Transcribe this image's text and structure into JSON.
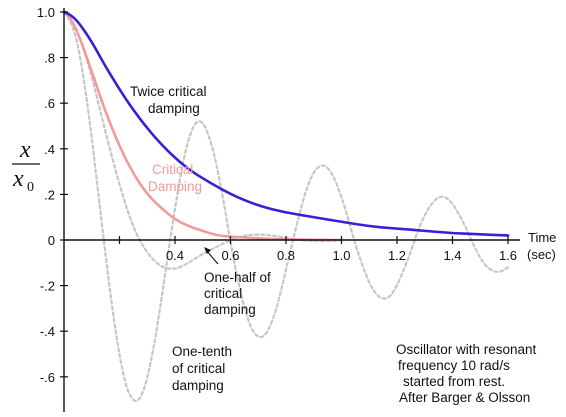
{
  "chart_data": {
    "type": "line",
    "xlabel": "Time",
    "xunit": "(sec)",
    "ylabel": {
      "symbol": "x",
      "denominator": "x",
      "subscript": "0"
    },
    "xlim": [
      0,
      1.6
    ],
    "ylim": [
      -0.7,
      1.0
    ],
    "grid": false,
    "x_ticks": [
      0.2,
      0.4,
      0.6,
      0.8,
      1.0,
      1.2,
      1.4,
      1.6
    ],
    "x_tick_labels": [
      "",
      "0.4",
      "0.6",
      "0.8",
      "1.0",
      "1.2",
      "1.4",
      "1.6"
    ],
    "y_ticks": [
      1.0,
      0.8,
      0.6,
      0.4,
      0.2,
      0,
      -0.2,
      -0.4,
      -0.6
    ],
    "y_tick_labels": [
      "1.0",
      ".8",
      ".6",
      ".4",
      ".2",
      "0",
      "-.2",
      "-.4",
      "-.6"
    ],
    "series": [
      {
        "color": "#3a1fd6",
        "style": "solid",
        "x": [
          0,
          0.02,
          0.05,
          0.1,
          0.15,
          0.2,
          0.25,
          0.3,
          0.35,
          0.4,
          0.45,
          0.5,
          0.6,
          0.7,
          0.8,
          0.9,
          1.0,
          1.1,
          1.2,
          1.3,
          1.4,
          1.5,
          1.6
        ],
        "values": [
          1.0,
          0.99,
          0.96,
          0.87,
          0.76,
          0.66,
          0.57,
          0.49,
          0.42,
          0.36,
          0.31,
          0.27,
          0.2,
          0.15,
          0.12,
          0.1,
          0.08,
          0.06,
          0.05,
          0.04,
          0.03,
          0.025,
          0.02
        ]
      },
      {
        "color": "#f19a9a",
        "style": "solid",
        "x": [
          0,
          0.02,
          0.05,
          0.1,
          0.15,
          0.2,
          0.25,
          0.3,
          0.35,
          0.4,
          0.45,
          0.5,
          0.55,
          0.6,
          0.7,
          0.8,
          0.9,
          1.0
        ],
        "values": [
          1.0,
          0.98,
          0.91,
          0.74,
          0.56,
          0.41,
          0.29,
          0.2,
          0.14,
          0.09,
          0.06,
          0.04,
          0.02,
          0.015,
          0.007,
          0.003,
          0.001,
          0.0
        ]
      },
      {
        "color": "#c6c6c6",
        "style": "dotted",
        "x": [
          0,
          0.05,
          0.1,
          0.15,
          0.2,
          0.25,
          0.3,
          0.35,
          0.4,
          0.45,
          0.5,
          0.55,
          0.6,
          0.65,
          0.7,
          0.75,
          0.8,
          0.85,
          0.9,
          0.95,
          1.0
        ],
        "values": [
          1.0,
          0.92,
          0.72,
          0.47,
          0.24,
          0.05,
          -0.06,
          -0.12,
          -0.13,
          -0.1,
          -0.06,
          -0.03,
          0.0,
          0.02,
          0.025,
          0.02,
          0.01,
          0.0,
          -0.005,
          -0.005,
          0.0
        ]
      },
      {
        "color": "#c6c6c6",
        "style": "dotted",
        "x": [
          0,
          0.025,
          0.05,
          0.075,
          0.1,
          0.125,
          0.15,
          0.175,
          0.2,
          0.225,
          0.25,
          0.275,
          0.3,
          0.325,
          0.35,
          0.375,
          0.4,
          0.425,
          0.45,
          0.475,
          0.5,
          0.525,
          0.55,
          0.575,
          0.6,
          0.625,
          0.65,
          0.675,
          0.7,
          0.725,
          0.75,
          0.775,
          0.8,
          0.825,
          0.85,
          0.875,
          0.9,
          0.925,
          0.95,
          0.975,
          1.0,
          1.025,
          1.05,
          1.075,
          1.1,
          1.125,
          1.15,
          1.175,
          1.2,
          1.225,
          1.25,
          1.275,
          1.3,
          1.325,
          1.35,
          1.375,
          1.4,
          1.425,
          1.45,
          1.475,
          1.5,
          1.525,
          1.55,
          1.575,
          1.6
        ],
        "values": [
          1.0,
          0.96,
          0.86,
          0.68,
          0.45,
          0.19,
          -0.07,
          -0.31,
          -0.51,
          -0.65,
          -0.71,
          -0.7,
          -0.61,
          -0.46,
          -0.27,
          -0.06,
          0.14,
          0.32,
          0.45,
          0.52,
          0.52,
          0.45,
          0.33,
          0.17,
          -0.01,
          -0.17,
          -0.3,
          -0.39,
          -0.43,
          -0.42,
          -0.36,
          -0.26,
          -0.13,
          0.0,
          0.12,
          0.23,
          0.3,
          0.33,
          0.32,
          0.27,
          0.19,
          0.09,
          -0.02,
          -0.11,
          -0.19,
          -0.24,
          -0.26,
          -0.25,
          -0.2,
          -0.13,
          -0.05,
          0.04,
          0.11,
          0.16,
          0.19,
          0.19,
          0.16,
          0.11,
          0.05,
          -0.02,
          -0.08,
          -0.12,
          -0.14,
          -0.14,
          -0.12
        ]
      }
    ],
    "annotations": [
      {
        "lines": [
          "Twice critical",
          "damping"
        ],
        "color": "#111111"
      },
      {
        "lines": [
          "Critical",
          "Damping"
        ],
        "color": "#f19a9a"
      },
      {
        "lines": [
          "One-half of",
          "critical",
          "damping"
        ],
        "color": "#111111"
      },
      {
        "lines": [
          "One-tenth",
          "of critical",
          "damping"
        ],
        "color": "#111111"
      },
      {
        "lines": [
          "Oscillator with resonant",
          "frequency 10 rad/s",
          "started from rest.",
          "After Barger & Olsson"
        ],
        "color": "#111111"
      }
    ]
  }
}
